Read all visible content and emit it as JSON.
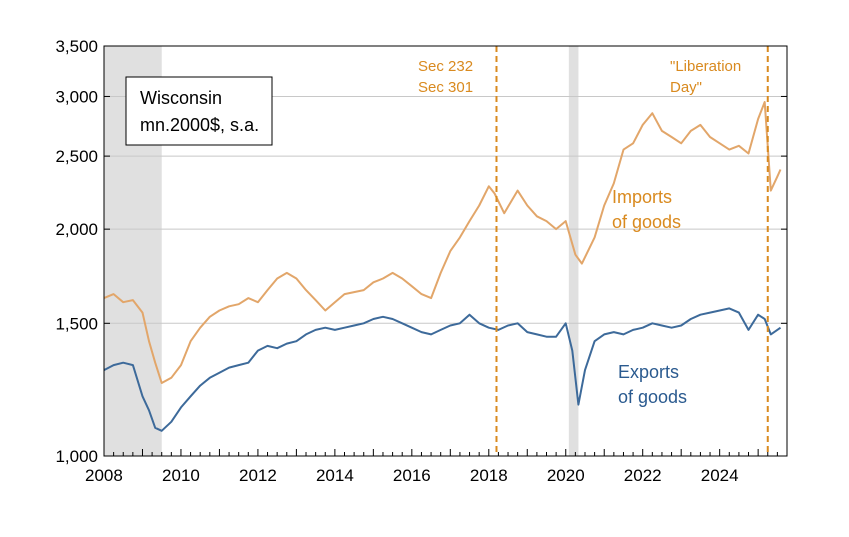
{
  "chart_data": {
    "type": "line",
    "title": "",
    "xlabel": "",
    "ylabel": "",
    "y_scale": "log",
    "xlim": [
      2008.0,
      2025.75
    ],
    "ylim": [
      1000,
      3500
    ],
    "x_ticks": [
      2008,
      2010,
      2012,
      2014,
      2016,
      2018,
      2020,
      2022,
      2024
    ],
    "x_tick_labels": [
      "2008",
      "2010",
      "2012",
      "2014",
      "2016",
      "2018",
      "2020",
      "2022",
      "2024"
    ],
    "y_ticks": [
      1000,
      1500,
      2000,
      2500,
      3000,
      3500
    ],
    "y_tick_labels": [
      "1,000",
      "1,500",
      "2,000",
      "2,500",
      "3,000",
      "3,500"
    ],
    "grid": "horizontal",
    "legend_box": {
      "lines": [
        "Wisconsin",
        "mn.2000$, s.a."
      ]
    },
    "recession_shading": [
      {
        "start": 2008.0,
        "end": 2009.5
      },
      {
        "start": 2020.08,
        "end": 2020.33
      }
    ],
    "vertical_markers": [
      {
        "x": 2018.2,
        "label_lines": [
          "Sec 232",
          "Sec 301"
        ],
        "color": "#d98a1f"
      },
      {
        "x": 2025.25,
        "label_lines": [
          "\"Liberation",
          "Day\""
        ],
        "color": "#d98a1f"
      }
    ],
    "series": [
      {
        "name_lines": [
          "Imports",
          "of goods"
        ],
        "color": "#e2a66a",
        "points": [
          [
            2008.0,
            1620
          ],
          [
            2008.25,
            1640
          ],
          [
            2008.5,
            1600
          ],
          [
            2008.75,
            1610
          ],
          [
            2009.0,
            1550
          ],
          [
            2009.17,
            1420
          ],
          [
            2009.33,
            1330
          ],
          [
            2009.5,
            1250
          ],
          [
            2009.75,
            1270
          ],
          [
            2010.0,
            1320
          ],
          [
            2010.25,
            1420
          ],
          [
            2010.5,
            1480
          ],
          [
            2010.75,
            1530
          ],
          [
            2011.0,
            1560
          ],
          [
            2011.25,
            1580
          ],
          [
            2011.5,
            1590
          ],
          [
            2011.75,
            1620
          ],
          [
            2012.0,
            1600
          ],
          [
            2012.25,
            1660
          ],
          [
            2012.5,
            1720
          ],
          [
            2012.75,
            1750
          ],
          [
            2013.0,
            1720
          ],
          [
            2013.25,
            1660
          ],
          [
            2013.5,
            1610
          ],
          [
            2013.75,
            1560
          ],
          [
            2014.0,
            1600
          ],
          [
            2014.25,
            1640
          ],
          [
            2014.5,
            1650
          ],
          [
            2014.75,
            1660
          ],
          [
            2015.0,
            1700
          ],
          [
            2015.25,
            1720
          ],
          [
            2015.5,
            1750
          ],
          [
            2015.75,
            1720
          ],
          [
            2016.0,
            1680
          ],
          [
            2016.25,
            1640
          ],
          [
            2016.5,
            1620
          ],
          [
            2016.75,
            1750
          ],
          [
            2017.0,
            1870
          ],
          [
            2017.25,
            1950
          ],
          [
            2017.5,
            2050
          ],
          [
            2017.75,
            2150
          ],
          [
            2018.0,
            2280
          ],
          [
            2018.15,
            2230
          ],
          [
            2018.4,
            2100
          ],
          [
            2018.75,
            2250
          ],
          [
            2019.0,
            2150
          ],
          [
            2019.25,
            2080
          ],
          [
            2019.5,
            2050
          ],
          [
            2019.75,
            2000
          ],
          [
            2020.0,
            2050
          ],
          [
            2020.25,
            1850
          ],
          [
            2020.42,
            1800
          ],
          [
            2020.75,
            1950
          ],
          [
            2021.0,
            2150
          ],
          [
            2021.25,
            2300
          ],
          [
            2021.5,
            2550
          ],
          [
            2021.75,
            2600
          ],
          [
            2022.0,
            2750
          ],
          [
            2022.25,
            2850
          ],
          [
            2022.5,
            2700
          ],
          [
            2022.75,
            2650
          ],
          [
            2023.0,
            2600
          ],
          [
            2023.25,
            2700
          ],
          [
            2023.5,
            2750
          ],
          [
            2023.75,
            2650
          ],
          [
            2024.0,
            2600
          ],
          [
            2024.25,
            2550
          ],
          [
            2024.5,
            2580
          ],
          [
            2024.75,
            2520
          ],
          [
            2025.0,
            2800
          ],
          [
            2025.17,
            2950
          ],
          [
            2025.33,
            2250
          ],
          [
            2025.5,
            2350
          ],
          [
            2025.58,
            2400
          ]
        ]
      },
      {
        "name_lines": [
          "Exports",
          "of goods"
        ],
        "color": "#3d6a9a",
        "points": [
          [
            2008.0,
            1300
          ],
          [
            2008.25,
            1320
          ],
          [
            2008.5,
            1330
          ],
          [
            2008.75,
            1320
          ],
          [
            2009.0,
            1200
          ],
          [
            2009.17,
            1150
          ],
          [
            2009.33,
            1090
          ],
          [
            2009.5,
            1080
          ],
          [
            2009.75,
            1110
          ],
          [
            2010.0,
            1160
          ],
          [
            2010.25,
            1200
          ],
          [
            2010.5,
            1240
          ],
          [
            2010.75,
            1270
          ],
          [
            2011.0,
            1290
          ],
          [
            2011.25,
            1310
          ],
          [
            2011.5,
            1320
          ],
          [
            2011.75,
            1330
          ],
          [
            2012.0,
            1380
          ],
          [
            2012.25,
            1400
          ],
          [
            2012.5,
            1390
          ],
          [
            2012.75,
            1410
          ],
          [
            2013.0,
            1420
          ],
          [
            2013.25,
            1450
          ],
          [
            2013.5,
            1470
          ],
          [
            2013.75,
            1480
          ],
          [
            2014.0,
            1470
          ],
          [
            2014.25,
            1480
          ],
          [
            2014.5,
            1490
          ],
          [
            2014.75,
            1500
          ],
          [
            2015.0,
            1520
          ],
          [
            2015.25,
            1530
          ],
          [
            2015.5,
            1520
          ],
          [
            2015.75,
            1500
          ],
          [
            2016.0,
            1480
          ],
          [
            2016.25,
            1460
          ],
          [
            2016.5,
            1450
          ],
          [
            2016.75,
            1470
          ],
          [
            2017.0,
            1490
          ],
          [
            2017.25,
            1500
          ],
          [
            2017.5,
            1540
          ],
          [
            2017.75,
            1500
          ],
          [
            2018.0,
            1480
          ],
          [
            2018.25,
            1470
          ],
          [
            2018.5,
            1490
          ],
          [
            2018.75,
            1500
          ],
          [
            2019.0,
            1460
          ],
          [
            2019.25,
            1450
          ],
          [
            2019.5,
            1440
          ],
          [
            2019.75,
            1440
          ],
          [
            2020.0,
            1500
          ],
          [
            2020.17,
            1380
          ],
          [
            2020.33,
            1170
          ],
          [
            2020.5,
            1300
          ],
          [
            2020.75,
            1420
          ],
          [
            2021.0,
            1450
          ],
          [
            2021.25,
            1460
          ],
          [
            2021.5,
            1450
          ],
          [
            2021.75,
            1470
          ],
          [
            2022.0,
            1480
          ],
          [
            2022.25,
            1500
          ],
          [
            2022.5,
            1490
          ],
          [
            2022.75,
            1480
          ],
          [
            2023.0,
            1490
          ],
          [
            2023.25,
            1520
          ],
          [
            2023.5,
            1540
          ],
          [
            2023.75,
            1550
          ],
          [
            2024.0,
            1560
          ],
          [
            2024.25,
            1570
          ],
          [
            2024.5,
            1550
          ],
          [
            2024.75,
            1470
          ],
          [
            2025.0,
            1540
          ],
          [
            2025.17,
            1520
          ],
          [
            2025.33,
            1450
          ],
          [
            2025.58,
            1480
          ]
        ]
      }
    ]
  }
}
